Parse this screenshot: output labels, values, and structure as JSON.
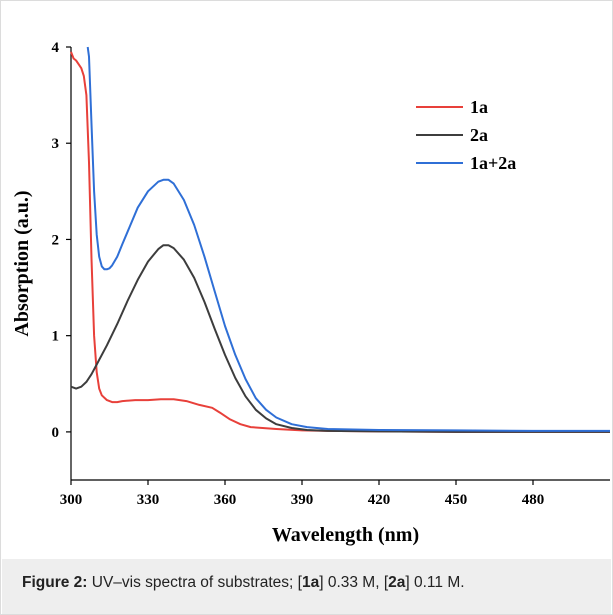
{
  "chart_data": {
    "type": "line",
    "xlabel": "Wavelength (nm)",
    "ylabel": "Absorption (a.u.)",
    "xlim": [
      300,
      510
    ],
    "ylim": [
      -0.5,
      4
    ],
    "xticks": [
      300,
      330,
      360,
      390,
      420,
      450,
      480
    ],
    "yticks": [
      0,
      1,
      2,
      3,
      4
    ],
    "legend_position": "top-right",
    "grid": false,
    "series": [
      {
        "name": "1a",
        "color": "#e8403a",
        "x": [
          300,
          301,
          302,
          303,
          304,
          305,
          306,
          307,
          308,
          309,
          310,
          311,
          312,
          314,
          316,
          318,
          320,
          325,
          330,
          335,
          340,
          345,
          350,
          355,
          358,
          362,
          366,
          370,
          380,
          390,
          400,
          420,
          450,
          480,
          510
        ],
        "y": [
          3.95,
          3.88,
          3.86,
          3.82,
          3.78,
          3.7,
          3.5,
          2.8,
          1.8,
          1.0,
          0.62,
          0.45,
          0.38,
          0.33,
          0.31,
          0.31,
          0.32,
          0.33,
          0.33,
          0.34,
          0.34,
          0.32,
          0.28,
          0.25,
          0.2,
          0.13,
          0.08,
          0.05,
          0.03,
          0.015,
          0.01,
          0.005,
          0.0,
          0.0,
          0.0
        ]
      },
      {
        "name": "2a",
        "color": "#3d3d3d",
        "x": [
          300,
          302,
          304,
          306,
          308,
          310,
          314,
          318,
          322,
          326,
          330,
          334,
          336,
          338,
          340,
          344,
          348,
          352,
          356,
          360,
          364,
          368,
          372,
          376,
          380,
          386,
          392,
          400,
          420,
          450,
          480,
          510
        ],
        "y": [
          0.47,
          0.45,
          0.47,
          0.52,
          0.6,
          0.7,
          0.9,
          1.12,
          1.36,
          1.58,
          1.77,
          1.9,
          1.94,
          1.94,
          1.91,
          1.79,
          1.6,
          1.35,
          1.07,
          0.8,
          0.56,
          0.37,
          0.23,
          0.14,
          0.08,
          0.04,
          0.02,
          0.01,
          0.005,
          0.0,
          0.0,
          0.0
        ]
      },
      {
        "name": "1a+2a",
        "color": "#2f6fd6",
        "x": [
          306.5,
          307,
          308,
          309,
          310,
          311,
          312,
          313,
          314,
          315,
          316,
          318,
          320,
          323,
          326,
          330,
          334,
          336,
          338,
          340,
          344,
          348,
          352,
          356,
          360,
          364,
          368,
          372,
          376,
          380,
          386,
          392,
          400,
          420,
          450,
          480,
          510
        ],
        "y": [
          4.0,
          3.9,
          3.2,
          2.5,
          2.05,
          1.82,
          1.72,
          1.69,
          1.69,
          1.7,
          1.73,
          1.82,
          1.95,
          2.14,
          2.33,
          2.5,
          2.6,
          2.62,
          2.62,
          2.58,
          2.41,
          2.15,
          1.82,
          1.46,
          1.1,
          0.8,
          0.55,
          0.35,
          0.23,
          0.15,
          0.08,
          0.05,
          0.03,
          0.02,
          0.015,
          0.01,
          0.01
        ]
      }
    ]
  },
  "caption": {
    "label": "Figure 2:",
    "text_before_1a": " UV–vis spectra of substrates; [",
    "bold_1a": "1a",
    "text_mid": "] 0.33 M, [",
    "bold_2a": "2a",
    "text_after": "] 0.11 M."
  }
}
